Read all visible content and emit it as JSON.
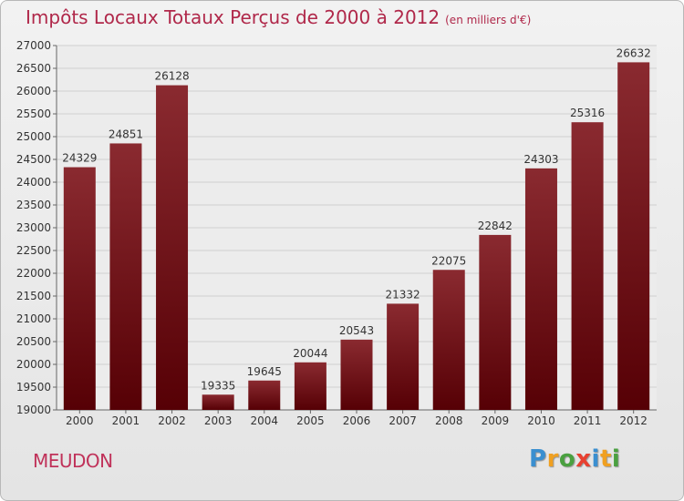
{
  "chart_data": {
    "type": "bar",
    "title": "Impôts Locaux Totaux Perçus de 2000 à 2012",
    "unit_note": "(en milliers d'€)",
    "categories": [
      "2000",
      "2001",
      "2002",
      "2003",
      "2004",
      "2005",
      "2006",
      "2007",
      "2008",
      "2009",
      "2010",
      "2011",
      "2012"
    ],
    "values": [
      24329,
      24851,
      26128,
      19335,
      19645,
      20044,
      20543,
      21332,
      22075,
      22842,
      24303,
      25316,
      26632
    ],
    "ylim": [
      19000,
      27000
    ],
    "yticks": [
      19000,
      19500,
      20000,
      20500,
      21000,
      21500,
      22000,
      22500,
      23000,
      23500,
      24000,
      24500,
      25000,
      25500,
      26000,
      26500,
      27000
    ],
    "xlabel": "",
    "ylabel": "",
    "bar_color": "#7a1a1f"
  },
  "city": "MEUDON",
  "logo": {
    "letters": [
      "P",
      "r",
      "o",
      "x",
      "i",
      "t",
      "i"
    ],
    "colors": [
      "#3a8fd0",
      "#f0a020",
      "#4aa040",
      "#e84030",
      "#3a8fd0",
      "#f0a020",
      "#4aa040"
    ]
  }
}
